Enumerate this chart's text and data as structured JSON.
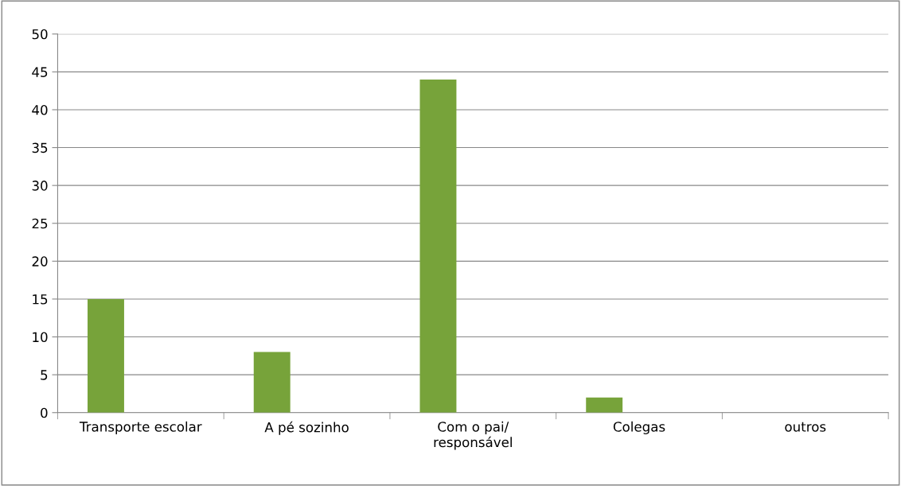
{
  "chart_data": {
    "type": "bar",
    "categories": [
      "Transporte escolar",
      "A pé sozinho",
      "Com o pai/\nresponsável",
      "Colegas",
      "outros"
    ],
    "values": [
      15,
      8,
      44,
      2,
      0
    ],
    "color": "#77a33a",
    "ylim": [
      0,
      50
    ],
    "yticks": [
      0,
      5,
      10,
      15,
      20,
      25,
      30,
      35,
      40,
      45,
      50
    ],
    "grid": "y"
  }
}
